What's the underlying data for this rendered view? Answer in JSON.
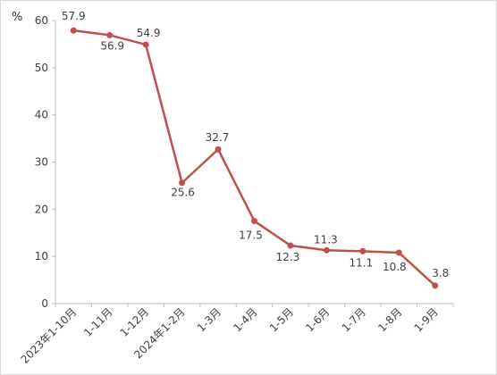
{
  "chart_data": {
    "type": "line",
    "unit_label": "%",
    "categories": [
      "2023年1-10月",
      "1-11月",
      "1-12月",
      "2024年1-2月",
      "1-3月",
      "1-4月",
      "1-5月",
      "1-6月",
      "1-7月",
      "1-8月",
      "1-9月"
    ],
    "series": [
      {
        "values": [
          57.9,
          56.9,
          54.9,
          25.6,
          32.7,
          17.5,
          12.3,
          11.3,
          11.1,
          10.8,
          3.8
        ],
        "data_labels": [
          "57.9",
          "56.9",
          "54.9",
          "25.6",
          "32.7",
          "17.5",
          "12.3",
          "11.3",
          "11.1",
          "10.8",
          "3.8"
        ],
        "color": "#c0504d"
      }
    ],
    "ylim": [
      0,
      60
    ],
    "yticks": [
      0,
      10,
      20,
      30,
      40,
      50,
      60
    ],
    "grid": false,
    "legend": "none"
  }
}
